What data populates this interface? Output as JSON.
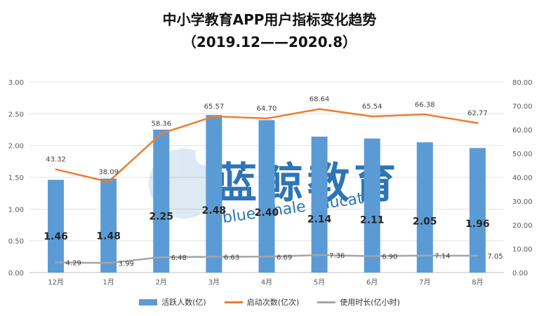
{
  "chart_data": {
    "type": "bar",
    "title": "中小学教育APP用户指标变化趋势",
    "subtitle": "（2019.12——2020.8）",
    "categories": [
      "12月",
      "1月",
      "2月",
      "3月",
      "4月",
      "5月",
      "6月",
      "7月",
      "8月"
    ],
    "series": [
      {
        "name": "活跃人数(亿)",
        "type": "bar",
        "axis": "left",
        "color": "#5b9bd5",
        "values": [
          1.46,
          1.48,
          2.25,
          2.48,
          2.4,
          2.14,
          2.11,
          2.05,
          1.96
        ],
        "labels": [
          "1.46",
          "1.48",
          "2.25",
          "2.48",
          "2.40",
          "2.14",
          "2.11",
          "2.05",
          "1.96"
        ]
      },
      {
        "name": "启动次数(亿次)",
        "type": "line",
        "axis": "right",
        "color": "#ed7d31",
        "values": [
          43.32,
          38.09,
          58.36,
          65.57,
          64.7,
          68.64,
          65.54,
          66.38,
          62.77
        ],
        "labels": [
          "43.32",
          "38.09",
          "58.36",
          "65.57",
          "64.70",
          "68.64",
          "65.54",
          "66.38",
          "62.77"
        ]
      },
      {
        "name": "使用时长(亿小时)",
        "type": "line",
        "axis": "right",
        "color": "#a5a5a5",
        "values": [
          4.29,
          3.99,
          6.48,
          6.63,
          6.69,
          7.36,
          6.9,
          7.14,
          7.05
        ],
        "labels": [
          "4.29",
          "3.99",
          "6.48",
          "6.63",
          "6.69",
          "7.36",
          "6.90",
          "7.14",
          "7.05"
        ]
      }
    ],
    "y_left": {
      "min": 0,
      "max": 3,
      "ticks": [
        "0.00",
        "0.50",
        "1.00",
        "1.50",
        "2.00",
        "2.50",
        "3.00"
      ]
    },
    "y_right": {
      "min": 0,
      "max": 80,
      "ticks": [
        "0.00",
        "10.00",
        "20.00",
        "30.00",
        "40.00",
        "50.00",
        "60.00",
        "70.00",
        "80.00"
      ]
    },
    "grid": true,
    "legend_position": "bottom",
    "watermark": {
      "cn": "蓝鲸教育",
      "en": "blue whale education"
    }
  }
}
